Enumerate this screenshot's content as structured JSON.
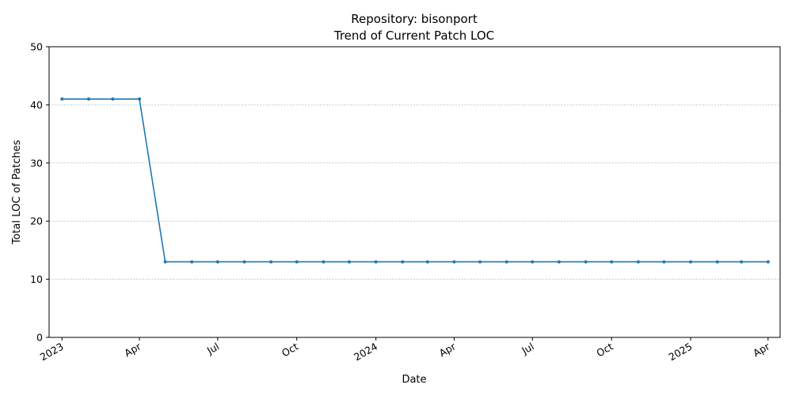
{
  "chart_data": {
    "type": "line",
    "title": "Repository: bisonport",
    "subtitle": "Trend of Current Patch LOC",
    "xlabel": "Date",
    "ylabel": "Total LOC of Patches",
    "ylim": [
      0,
      50
    ],
    "xlim": [
      "2022-12-17",
      "2025-04-15"
    ],
    "grid": {
      "y": true,
      "x": false,
      "style": "dashed"
    },
    "yticks": [
      0,
      10,
      20,
      30,
      40,
      50
    ],
    "xticks": [
      {
        "date": "2023-01-01",
        "label": "2023"
      },
      {
        "date": "2023-04-01",
        "label": "Apr"
      },
      {
        "date": "2023-07-01",
        "label": "Jul"
      },
      {
        "date": "2023-10-01",
        "label": "Oct"
      },
      {
        "date": "2024-01-01",
        "label": "2024"
      },
      {
        "date": "2024-04-01",
        "label": "Apr"
      },
      {
        "date": "2024-07-01",
        "label": "Jul"
      },
      {
        "date": "2024-10-01",
        "label": "Oct"
      },
      {
        "date": "2025-01-01",
        "label": "2025"
      },
      {
        "date": "2025-04-01",
        "label": "Apr"
      }
    ],
    "series": [
      {
        "color": "#1f77b4",
        "points": [
          {
            "x": "2023-01-01",
            "y": 41
          },
          {
            "x": "2023-02-01",
            "y": 41
          },
          {
            "x": "2023-03-01",
            "y": 41
          },
          {
            "x": "2023-04-01",
            "y": 41
          },
          {
            "x": "2023-05-01",
            "y": 13
          },
          {
            "x": "2023-06-01",
            "y": 13
          },
          {
            "x": "2023-07-01",
            "y": 13
          },
          {
            "x": "2023-08-01",
            "y": 13
          },
          {
            "x": "2023-09-01",
            "y": 13
          },
          {
            "x": "2023-10-01",
            "y": 13
          },
          {
            "x": "2023-11-01",
            "y": 13
          },
          {
            "x": "2023-12-01",
            "y": 13
          },
          {
            "x": "2024-01-01",
            "y": 13
          },
          {
            "x": "2024-02-01",
            "y": 13
          },
          {
            "x": "2024-03-01",
            "y": 13
          },
          {
            "x": "2024-04-01",
            "y": 13
          },
          {
            "x": "2024-05-01",
            "y": 13
          },
          {
            "x": "2024-06-01",
            "y": 13
          },
          {
            "x": "2024-07-01",
            "y": 13
          },
          {
            "x": "2024-08-01",
            "y": 13
          },
          {
            "x": "2024-09-01",
            "y": 13
          },
          {
            "x": "2024-10-01",
            "y": 13
          },
          {
            "x": "2024-11-01",
            "y": 13
          },
          {
            "x": "2024-12-01",
            "y": 13
          },
          {
            "x": "2025-01-01",
            "y": 13
          },
          {
            "x": "2025-02-01",
            "y": 13
          },
          {
            "x": "2025-03-01",
            "y": 13
          },
          {
            "x": "2025-04-01",
            "y": 13
          }
        ]
      }
    ]
  }
}
